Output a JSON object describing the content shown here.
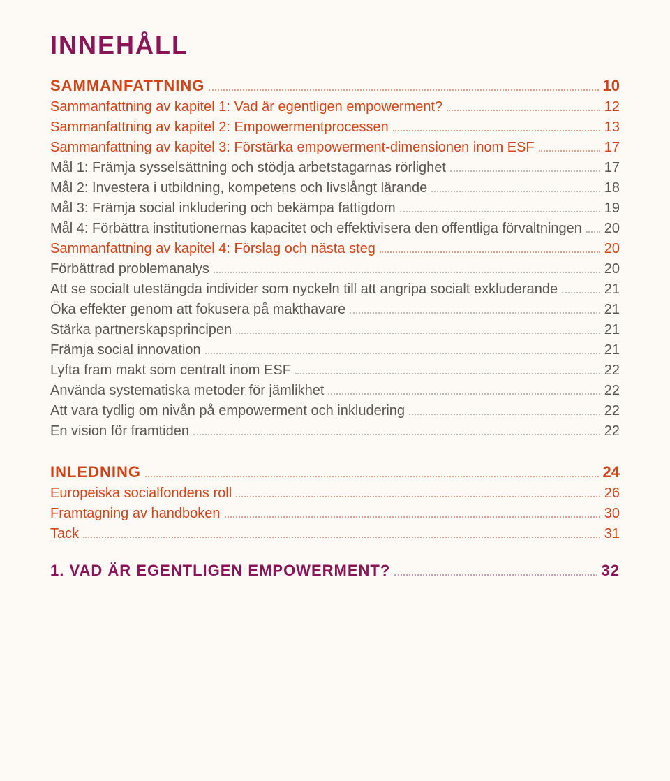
{
  "title": "INNEHÅLL",
  "colors": {
    "purple": "#8a1556",
    "orange": "#d24317",
    "body": "#5a5552",
    "background": "#fdfaf6"
  },
  "entries": [
    {
      "kind": "section",
      "label": "SAMMANFATTNING",
      "page": "10"
    },
    {
      "kind": "highlight",
      "label": "Sammanfattning av kapitel 1: Vad är egentligen empowerment?",
      "page": "12"
    },
    {
      "kind": "highlight",
      "label": "Sammanfattning av kapitel 2: Empowermentprocessen",
      "page": "13"
    },
    {
      "kind": "highlight",
      "label": "Sammanfattning av kapitel 3: Förstärka empowerment-dimensionen inom ESF",
      "page": "17"
    },
    {
      "kind": "plain",
      "label": "Mål 1: Främja sysselsättning och stödja arbetstagarnas rörlighet",
      "page": "17"
    },
    {
      "kind": "plain",
      "label": "Mål 2: Investera i utbildning, kompetens och livslångt lärande",
      "page": "18"
    },
    {
      "kind": "plain",
      "label": "Mål 3: Främja social inkludering och bekämpa fattigdom",
      "page": "19"
    },
    {
      "kind": "plain",
      "label": "Mål 4: Förbättra institutionernas kapacitet och effektivisera den offentliga förvaltningen",
      "page": "20"
    },
    {
      "kind": "highlight",
      "label": "Sammanfattning av kapitel 4: Förslag och nästa steg",
      "page": "20"
    },
    {
      "kind": "plain",
      "label": "Förbättrad problemanalys",
      "page": "20"
    },
    {
      "kind": "plain",
      "label": "Att se socialt utestängda individer som nyckeln till att angripa socialt exkluderande",
      "page": "21"
    },
    {
      "kind": "plain",
      "label": "Öka effekter genom att fokusera på makthavare",
      "page": "21"
    },
    {
      "kind": "plain",
      "label": "Stärka partnerskapsprincipen",
      "page": "21"
    },
    {
      "kind": "plain",
      "label": "Främja social innovation",
      "page": "21"
    },
    {
      "kind": "plain",
      "label": "Lyfta fram makt som centralt inom ESF",
      "page": "22"
    },
    {
      "kind": "plain",
      "label": "Använda systematiska metoder för jämlikhet",
      "page": "22"
    },
    {
      "kind": "plain",
      "label": "Att vara tydlig om nivån på empowerment och inkludering",
      "page": "22"
    },
    {
      "kind": "plain",
      "label": "En vision för framtiden",
      "page": "22"
    },
    {
      "kind": "gap"
    },
    {
      "kind": "section",
      "label": "INLEDNING",
      "page": "24"
    },
    {
      "kind": "highlight",
      "label": "Europeiska socialfondens roll",
      "page": "26"
    },
    {
      "kind": "highlight",
      "label": "Framtagning av handboken",
      "page": "30"
    },
    {
      "kind": "highlight",
      "label": "Tack",
      "page": "31"
    }
  ],
  "footer": {
    "label": "1. VAD ÄR EGENTLIGEN EMPOWERMENT?",
    "page": "32"
  }
}
